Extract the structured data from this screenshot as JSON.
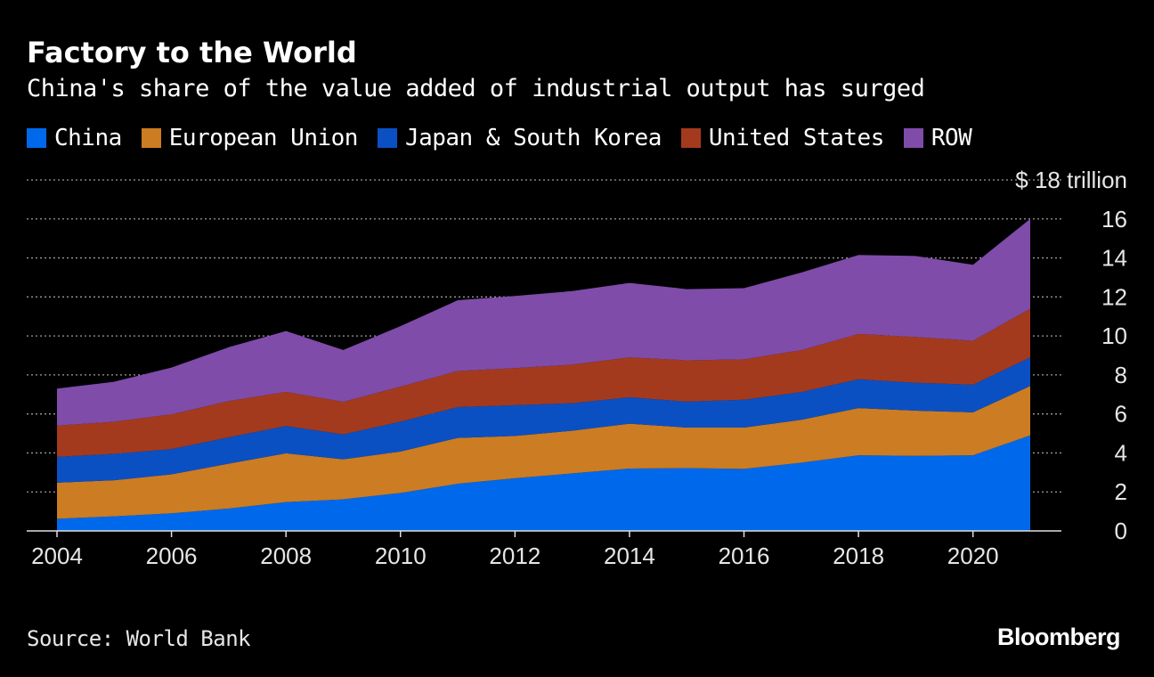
{
  "title": "Factory to the World",
  "subtitle": "China's share of the value added of industrial output has surged",
  "source": "Source: World Bank",
  "brand": "Bloomberg",
  "chart_data": {
    "type": "area",
    "stacked": true,
    "title": "Factory to the World",
    "subtitle": "China's share of the value added of industrial output has surged",
    "xlabel": "",
    "ylabel": "$ trillion",
    "x": [
      2004,
      2005,
      2006,
      2007,
      2008,
      2009,
      2010,
      2011,
      2012,
      2013,
      2014,
      2015,
      2016,
      2017,
      2018,
      2019,
      2020,
      2021
    ],
    "xticks": [
      2004,
      2006,
      2008,
      2010,
      2012,
      2014,
      2016,
      2018,
      2020
    ],
    "yticks": [
      0,
      2,
      4,
      6,
      8,
      10,
      12,
      14,
      16,
      18
    ],
    "ytick_labels": [
      "0",
      "2",
      "4",
      "6",
      "8",
      "10",
      "12",
      "14",
      "16",
      "$ 18 trillion"
    ],
    "ylim": [
      0,
      18
    ],
    "grid": true,
    "series": [
      {
        "name": "China",
        "color": "#0068EB",
        "values": [
          0.62,
          0.75,
          0.9,
          1.15,
          1.48,
          1.62,
          1.95,
          2.42,
          2.7,
          2.95,
          3.2,
          3.22,
          3.18,
          3.5,
          3.88,
          3.85,
          3.88,
          4.9
        ]
      },
      {
        "name": "European Union",
        "color": "#CC7C22",
        "values": [
          1.85,
          1.85,
          2.0,
          2.3,
          2.5,
          2.05,
          2.12,
          2.35,
          2.17,
          2.19,
          2.3,
          2.08,
          2.12,
          2.2,
          2.42,
          2.32,
          2.2,
          2.53
        ]
      },
      {
        "name": "Japan & South Korea",
        "color": "#0B50C3",
        "values": [
          1.33,
          1.35,
          1.3,
          1.35,
          1.4,
          1.28,
          1.53,
          1.58,
          1.58,
          1.41,
          1.35,
          1.33,
          1.43,
          1.42,
          1.48,
          1.43,
          1.42,
          1.47
        ]
      },
      {
        "name": "United States",
        "color": "#A43A1D",
        "values": [
          1.6,
          1.65,
          1.78,
          1.86,
          1.75,
          1.67,
          1.8,
          1.85,
          1.9,
          1.98,
          2.05,
          2.12,
          2.07,
          2.15,
          2.32,
          2.35,
          2.25,
          2.5
        ]
      },
      {
        "name": "ROW",
        "color": "#7F4CAA",
        "values": [
          1.9,
          2.05,
          2.4,
          2.76,
          3.12,
          2.66,
          3.1,
          3.63,
          3.7,
          3.77,
          3.82,
          3.65,
          3.65,
          3.98,
          4.05,
          4.15,
          3.9,
          4.6
        ]
      }
    ]
  }
}
